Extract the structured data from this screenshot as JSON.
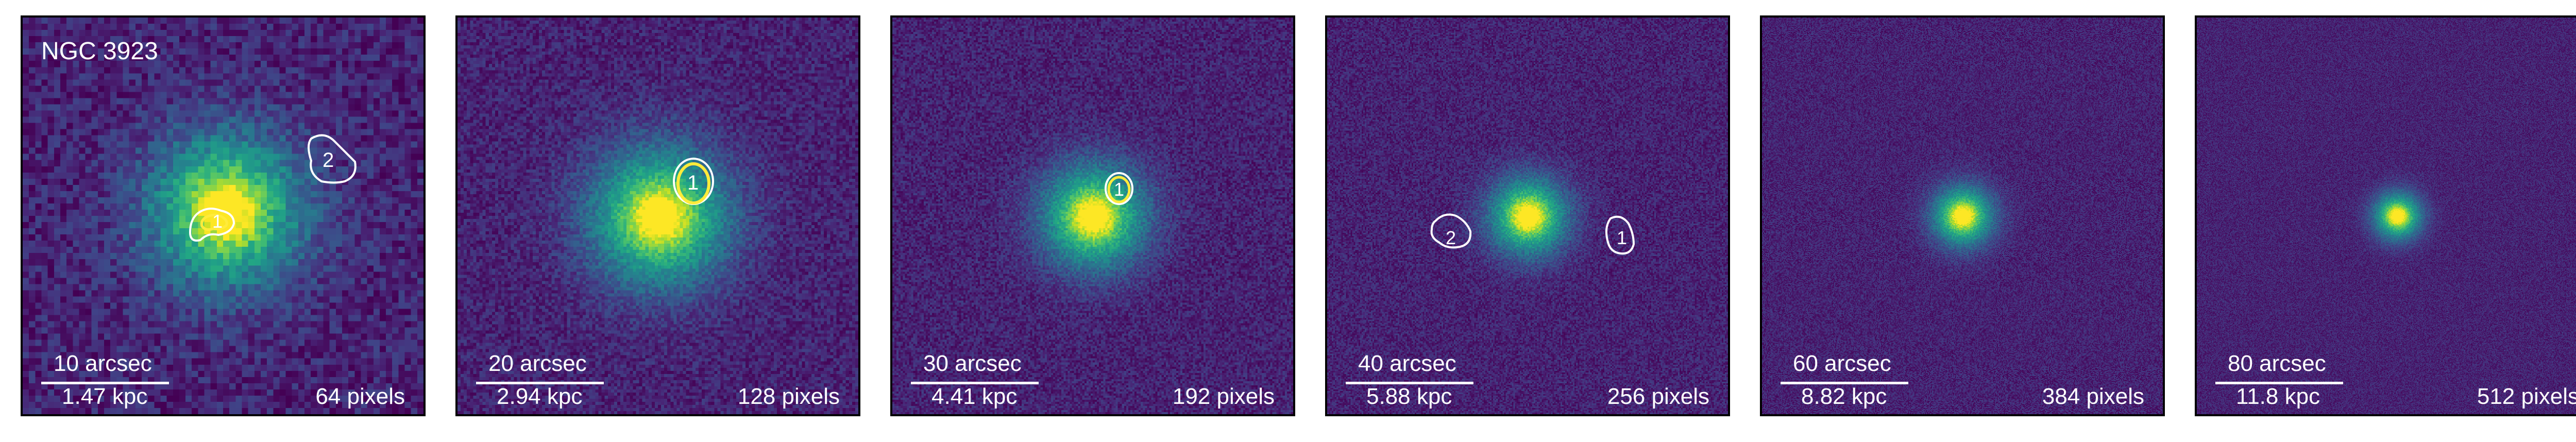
{
  "figure": {
    "galaxy": "NGC 3923",
    "colors": {
      "background": "#3b0f6a",
      "bright": "#8fe03a",
      "contour_white": "#ffffff",
      "contour_yellow": "#ffeb3b"
    },
    "panels": [
      {
        "id": "p1",
        "arcsec": "10 arcsec",
        "kpc": "1.47 kpc",
        "pixels": "64 pixels",
        "grid": 64,
        "contour_labels": [
          "2",
          "1"
        ],
        "show_name": true
      },
      {
        "id": "p2",
        "arcsec": "20 arcsec",
        "kpc": "2.94 kpc",
        "pixels": "128 pixels",
        "grid": 128,
        "contour_labels": [
          "1"
        ],
        "show_name": false
      },
      {
        "id": "p3",
        "arcsec": "30 arcsec",
        "kpc": "4.41 kpc",
        "pixels": "192 pixels",
        "grid": 192,
        "contour_labels": [
          "1"
        ],
        "show_name": false
      },
      {
        "id": "p4",
        "arcsec": "40 arcsec",
        "kpc": "5.88 kpc",
        "pixels": "256 pixels",
        "grid": 256,
        "contour_labels": [
          "2",
          "1"
        ],
        "show_name": false
      },
      {
        "id": "p5",
        "arcsec": "60 arcsec",
        "kpc": "8.82 kpc",
        "pixels": "384 pixels",
        "grid": 384,
        "contour_labels": [],
        "show_name": false
      },
      {
        "id": "p6",
        "arcsec": "80 arcsec",
        "kpc": "11.8 kpc",
        "pixels": "512 pixels",
        "grid": 512,
        "contour_labels": [],
        "show_name": false
      }
    ]
  }
}
